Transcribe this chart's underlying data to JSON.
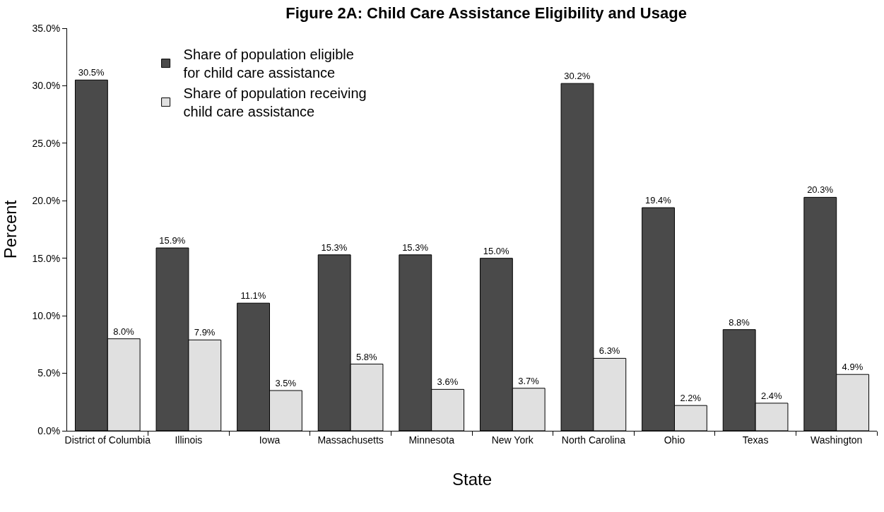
{
  "chart_data": {
    "type": "bar",
    "title": "Figure 2A: Child Care Assistance Eligibility and Usage",
    "xlabel": "State",
    "ylabel": "Percent",
    "categories": [
      "District of Columbia",
      "Illinois",
      "Iowa",
      "Massachusetts",
      "Minnesota",
      "New York",
      "North Carolina",
      "Ohio",
      "Texas",
      "Washington"
    ],
    "series": [
      {
        "name": "Share of population eligible for child care assistance",
        "color": "#4a4a4a",
        "values": [
          30.5,
          15.9,
          11.1,
          15.3,
          15.3,
          15.0,
          30.2,
          19.4,
          8.8,
          20.3
        ],
        "value_labels": [
          "30.5%",
          "15.9%",
          "11.1%",
          "15.3%",
          "15.3%",
          "15.0%",
          "30.2%",
          "19.4%",
          "8.8%",
          "20.3%"
        ]
      },
      {
        "name": "Share of population receiving child care assistance",
        "color": "#e0e0e0",
        "values": [
          8.0,
          7.9,
          3.5,
          5.8,
          3.6,
          3.7,
          6.3,
          2.2,
          2.4,
          4.9
        ],
        "value_labels": [
          "8.0%",
          "7.9%",
          "3.5%",
          "5.8%",
          "3.6%",
          "3.7%",
          "6.3%",
          "2.2%",
          "2.4%",
          "4.9%"
        ]
      }
    ],
    "ylim": [
      0,
      35
    ],
    "yticks": [
      {
        "value": 0,
        "label": "0.0%"
      },
      {
        "value": 5,
        "label": "5.0%"
      },
      {
        "value": 10,
        "label": "10.0%"
      },
      {
        "value": 15,
        "label": "15.0%"
      },
      {
        "value": 20,
        "label": "20.0%"
      },
      {
        "value": 25,
        "label": "25.0%"
      },
      {
        "value": 30,
        "label": "30.0%"
      },
      {
        "value": 35,
        "label": "35.0%"
      }
    ],
    "grid": false,
    "legend": "top left"
  }
}
